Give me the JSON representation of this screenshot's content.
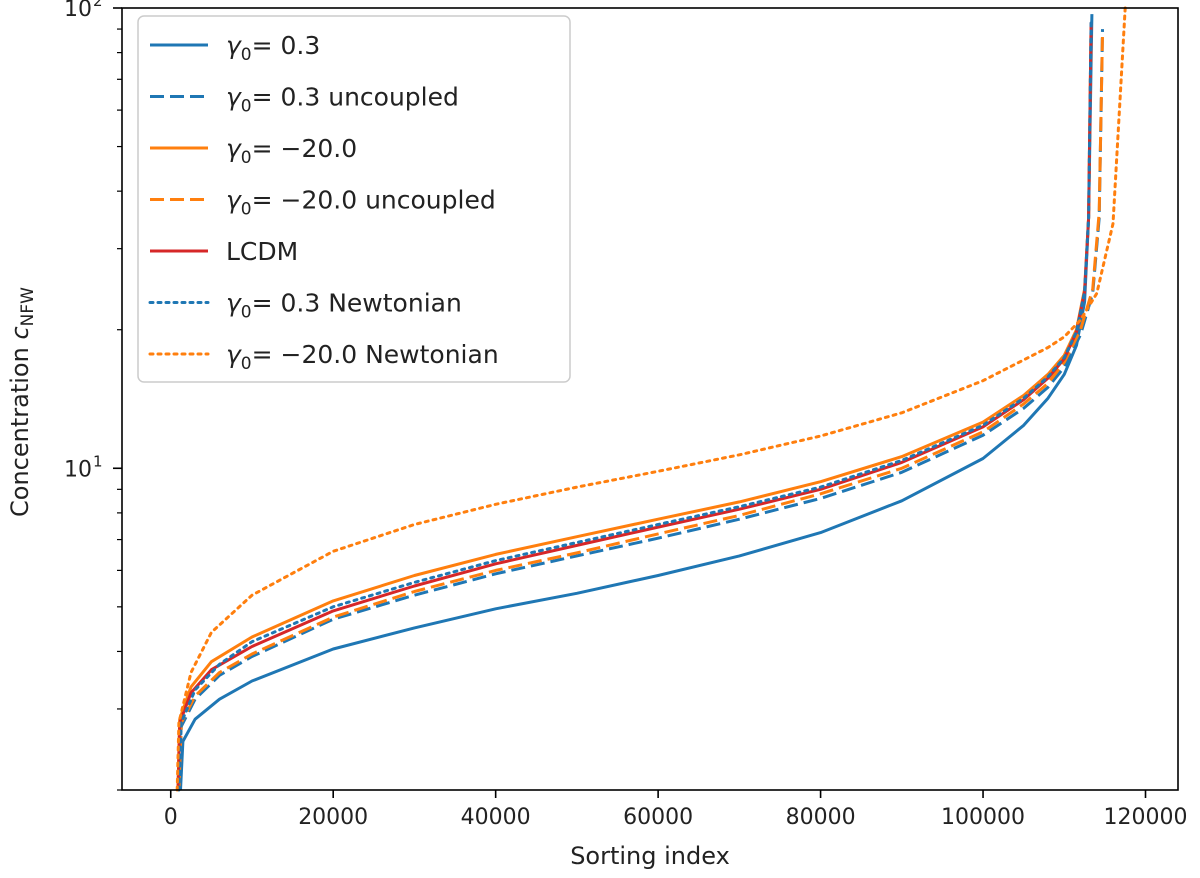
{
  "chart_data": {
    "type": "line",
    "title": "",
    "xlabel": "Sorting index",
    "ylabel": "Concentration c_NFW",
    "ylabel_main": "Concentration ",
    "ylabel_var": "c",
    "ylabel_sub": "NFW",
    "xscale": "linear",
    "yscale": "log",
    "xlim": [
      -6000,
      124000
    ],
    "ylim": [
      2.0,
      100.0
    ],
    "x_ticks": [
      0,
      20000,
      40000,
      60000,
      80000,
      100000,
      120000
    ],
    "x_tick_labels": [
      "0",
      "20000",
      "40000",
      "60000",
      "80000",
      "100000",
      "120000"
    ],
    "y_major_ticks": [
      {
        "value": 10,
        "base": "10",
        "exp": "1"
      },
      {
        "value": 100,
        "base": "10",
        "exp": "2"
      }
    ],
    "legend_position": "upper-left",
    "series": [
      {
        "name": "γ0 = 0.3",
        "color": "#1f77b4",
        "style": "solid",
        "x": [
          1200,
          1500,
          3000,
          6000,
          10000,
          20000,
          30000,
          40000,
          50000,
          60000,
          70000,
          80000,
          90000,
          100000,
          105000,
          108000,
          110000,
          111500,
          112500,
          113000,
          113400
        ],
        "y": [
          2.0,
          2.55,
          2.85,
          3.15,
          3.45,
          4.05,
          4.5,
          4.95,
          5.35,
          5.85,
          6.45,
          7.25,
          8.5,
          10.5,
          12.4,
          14.2,
          16.0,
          18.5,
          23.0,
          35.0,
          97.0
        ]
      },
      {
        "name": "γ0 = 0.3 uncoupled",
        "color": "#1f77b4",
        "style": "dashed",
        "x": [
          1000,
          1300,
          3000,
          6000,
          10000,
          20000,
          30000,
          40000,
          50000,
          60000,
          70000,
          80000,
          90000,
          100000,
          105000,
          108000,
          110000,
          112000,
          113500,
          114300,
          114700
        ],
        "y": [
          2.0,
          2.75,
          3.15,
          3.55,
          3.9,
          4.7,
          5.3,
          5.9,
          6.45,
          7.05,
          7.75,
          8.6,
          9.8,
          11.8,
          13.5,
          15.0,
          16.6,
          19.5,
          24.0,
          35.0,
          90.0
        ]
      },
      {
        "name": "γ0 = −20.0",
        "color": "#ff7f0e",
        "style": "solid",
        "x": [
          900,
          1100,
          2500,
          5000,
          10000,
          20000,
          30000,
          40000,
          50000,
          60000,
          70000,
          80000,
          90000,
          100000,
          105000,
          108000,
          110000,
          111500,
          112500,
          113000,
          113300
        ],
        "y": [
          2.0,
          2.85,
          3.35,
          3.8,
          4.3,
          5.15,
          5.85,
          6.5,
          7.1,
          7.75,
          8.45,
          9.35,
          10.6,
          12.6,
          14.4,
          16.0,
          17.6,
          20.0,
          24.5,
          35.0,
          92.0
        ]
      },
      {
        "name": "γ0 = −20.0 uncoupled",
        "color": "#ff7f0e",
        "style": "dashed",
        "x": [
          1000,
          1300,
          3000,
          6000,
          10000,
          20000,
          30000,
          40000,
          50000,
          60000,
          70000,
          80000,
          90000,
          100000,
          105000,
          108000,
          110000,
          112000,
          113500,
          114300,
          114700
        ],
        "y": [
          2.0,
          2.8,
          3.2,
          3.6,
          3.95,
          4.75,
          5.4,
          6.0,
          6.55,
          7.2,
          7.9,
          8.8,
          10.0,
          12.0,
          13.8,
          15.3,
          17.0,
          20.0,
          24.5,
          36.0,
          88.0
        ]
      },
      {
        "name": "LCDM",
        "color": "#d62728",
        "style": "solid",
        "x": [
          900,
          1100,
          2500,
          5000,
          10000,
          20000,
          30000,
          40000,
          50000,
          60000,
          70000,
          80000,
          90000,
          100000,
          105000,
          108000,
          110000,
          111500,
          112500,
          113000,
          113300
        ],
        "y": [
          2.0,
          2.8,
          3.25,
          3.65,
          4.1,
          4.9,
          5.55,
          6.2,
          6.8,
          7.45,
          8.15,
          9.0,
          10.3,
          12.3,
          14.1,
          15.7,
          17.3,
          19.8,
          24.2,
          35.0,
          93.0
        ]
      },
      {
        "name": "γ0 = 0.3 Newtonian",
        "color": "#1f77b4",
        "style": "dotted",
        "x": [
          1000,
          1300,
          3000,
          6000,
          10000,
          20000,
          30000,
          40000,
          50000,
          60000,
          70000,
          80000,
          90000,
          100000,
          105000,
          108000,
          110000,
          111500,
          112500,
          113000,
          113300
        ],
        "y": [
          2.0,
          2.8,
          3.3,
          3.75,
          4.2,
          5.0,
          5.65,
          6.3,
          6.9,
          7.55,
          8.25,
          9.1,
          10.4,
          12.4,
          14.2,
          15.8,
          17.4,
          19.8,
          24.2,
          35.0,
          93.0
        ]
      },
      {
        "name": "γ0 = −20.0 Newtonian",
        "color": "#ff7f0e",
        "style": "dotted",
        "x": [
          800,
          1000,
          2500,
          5000,
          10000,
          20000,
          30000,
          40000,
          50000,
          60000,
          70000,
          80000,
          90000,
          100000,
          105000,
          108000,
          110000,
          112000,
          114000,
          116000,
          117500
        ],
        "y": [
          2.0,
          2.8,
          3.6,
          4.4,
          5.3,
          6.6,
          7.55,
          8.35,
          9.1,
          9.85,
          10.7,
          11.75,
          13.2,
          15.5,
          17.2,
          18.3,
          19.3,
          21.0,
          24.0,
          34.0,
          100.0
        ]
      }
    ]
  },
  "legend": [
    {
      "kind": "gamma",
      "value": "= 0.3",
      "label": "γ0 = 0.3"
    },
    {
      "kind": "gamma",
      "value": "= 0.3 uncoupled",
      "label": "γ0 = 0.3 uncoupled"
    },
    {
      "kind": "gamma",
      "value": "= −20.0",
      "label": "γ0 = −20.0"
    },
    {
      "kind": "gamma",
      "value": "= −20.0 uncoupled",
      "label": "γ0 = −20.0 uncoupled"
    },
    {
      "kind": "plain",
      "value": "LCDM",
      "label": "LCDM"
    },
    {
      "kind": "gamma",
      "value": "= 0.3 Newtonian",
      "label": "γ0 = 0.3 Newtonian"
    },
    {
      "kind": "gamma",
      "value": "= −20.0 Newtonian",
      "label": "γ0 = −20.0 Newtonian"
    }
  ],
  "symbols": {
    "gamma": "γ",
    "gamma_sub": "0"
  }
}
